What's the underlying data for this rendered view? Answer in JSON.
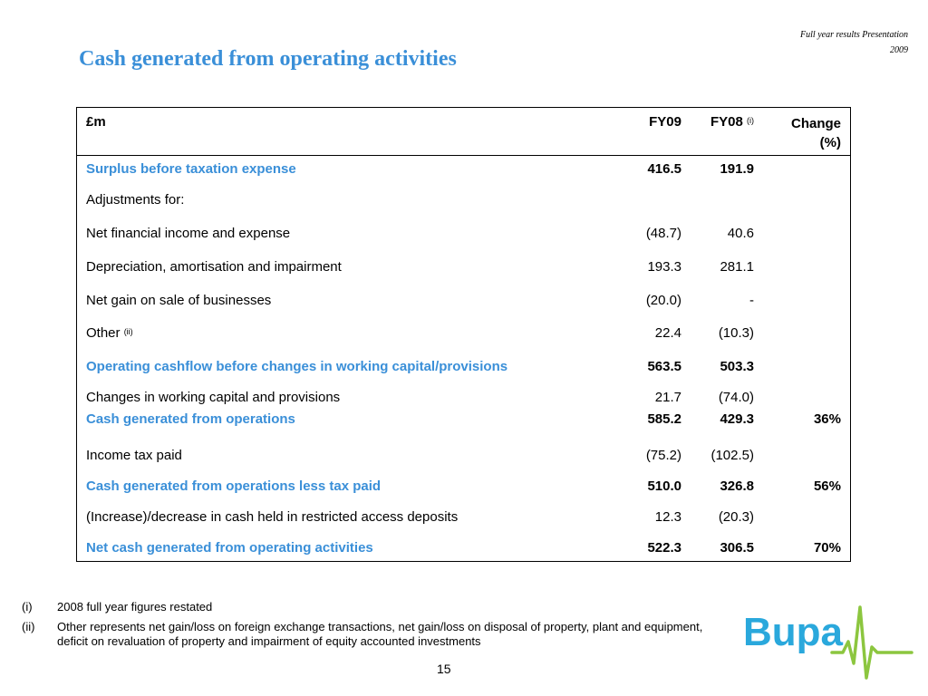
{
  "header": {
    "presentation_line1": "Full year results Presentation",
    "presentation_line2": "2009",
    "title": "Cash generated from operating activities"
  },
  "table": {
    "columns": {
      "label": "£m",
      "fy09": "FY09",
      "fy08": "FY08",
      "fy08_note": "(i)",
      "change_line1": "Change",
      "change_line2": "(%)"
    },
    "rows": [
      {
        "label": "Surplus before taxation expense",
        "fy09": "416.5",
        "fy08": "191.9",
        "change": ""
      },
      {
        "label": "Adjustments for:",
        "fy09": "",
        "fy08": "",
        "change": ""
      },
      {
        "label": "Net financial income and expense",
        "fy09": "(48.7)",
        "fy08": "40.6",
        "change": ""
      },
      {
        "label": "Depreciation, amortisation and impairment",
        "fy09": "193.3",
        "fy08": "281.1",
        "change": ""
      },
      {
        "label": "Net gain on sale of businesses",
        "fy09": "(20.0)",
        "fy08": "-",
        "change": ""
      },
      {
        "label": "Other",
        "note": "(ii)",
        "fy09": "22.4",
        "fy08": "(10.3)",
        "change": ""
      },
      {
        "label": "Operating cashflow before changes in working capital/provisions",
        "fy09": "563.5",
        "fy08": "503.3",
        "change": ""
      },
      {
        "label": "Changes in working capital and provisions",
        "fy09": "21.7",
        "fy08": "(74.0)",
        "change": ""
      },
      {
        "label": "Cash generated from operations",
        "fy09": "585.2",
        "fy08": "429.3",
        "change": "36%"
      },
      {
        "label": "Income tax paid",
        "fy09": "(75.2)",
        "fy08": "(102.5)",
        "change": ""
      },
      {
        "label": "Cash generated from operations less tax paid",
        "fy09": "510.0",
        "fy08": "326.8",
        "change": "56%"
      },
      {
        "label": "(Increase)/decrease in cash held in restricted access deposits",
        "fy09": "12.3",
        "fy08": "(20.3)",
        "change": ""
      },
      {
        "label": "Net cash generated from operating activities",
        "fy09": "522.3",
        "fy08": "306.5",
        "change": "70%"
      }
    ]
  },
  "footnotes": [
    {
      "marker": "(i)",
      "text": "2008 full year figures restated"
    },
    {
      "marker": "(ii)",
      "text": "Other represents net gain/loss on foreign exchange transactions, net gain/loss on disposal of property, plant and equipment, deficit on revaluation of property and impairment of equity accounted investments"
    }
  ],
  "page_number": "15",
  "logo": {
    "text": "Bupa",
    "color": "#2aa8dc"
  },
  "colors": {
    "accent": "#3a8fd8",
    "logo_green": "#8cc63f"
  }
}
